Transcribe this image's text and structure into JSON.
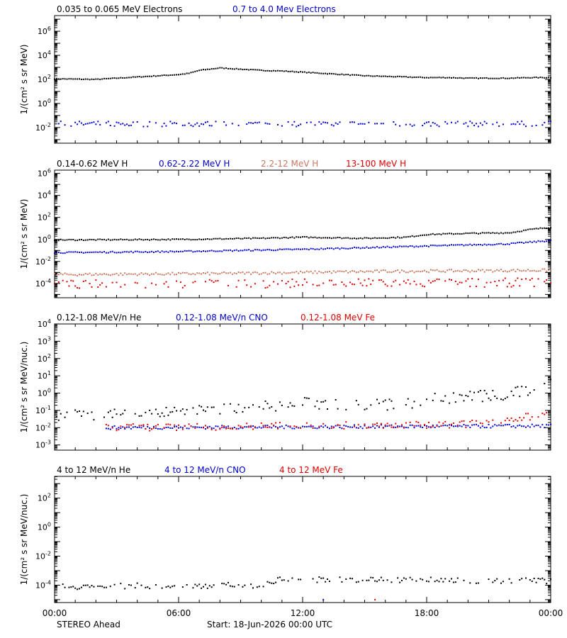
{
  "footer": {
    "spacecraft": "STEREO Ahead",
    "start": "Start: 18-Jun-2026 00:00 UTC"
  },
  "x_ticks": [
    "00:00",
    "06:00",
    "12:00",
    "18:00",
    "00:00"
  ],
  "colors": {
    "black": "#000000",
    "blue": "#0000cc",
    "salmon": "#c87860",
    "red": "#dd0000"
  },
  "chart_data": [
    {
      "type": "scatter",
      "ylabel": "1/(cm² s sr MeV)",
      "yscale": "log",
      "ylim_exp": [
        -3.3,
        7.3
      ],
      "y_ticks": [
        {
          "base": "10",
          "exp": "6",
          "e": 6
        },
        {
          "base": "10",
          "exp": "4",
          "e": 4
        },
        {
          "base": "10",
          "exp": "2",
          "e": 2
        },
        {
          "base": "10",
          "exp": "0",
          "e": 0
        },
        {
          "base": "10",
          "exp": "-2",
          "e": -2
        }
      ],
      "x_hours": [
        0,
        24
      ],
      "series": [
        {
          "name": "0.035 to 0.065 MeV Electrons",
          "color": "#000000",
          "points": [
            [
              0,
              2.05
            ],
            [
              2,
              2.0
            ],
            [
              3,
              2.1
            ],
            [
              4,
              2.2
            ],
            [
              5,
              2.3
            ],
            [
              6,
              2.4
            ],
            [
              6.5,
              2.5
            ],
            [
              7,
              2.75
            ],
            [
              8,
              2.95
            ],
            [
              9,
              2.85
            ],
            [
              10,
              2.75
            ],
            [
              11,
              2.7
            ],
            [
              12,
              2.6
            ],
            [
              13,
              2.5
            ],
            [
              14,
              2.4
            ],
            [
              15,
              2.3
            ],
            [
              16,
              2.25
            ],
            [
              17,
              2.2
            ],
            [
              18,
              2.15
            ],
            [
              19,
              2.15
            ],
            [
              20,
              2.1
            ],
            [
              21,
              2.1
            ],
            [
              22,
              2.1
            ],
            [
              23,
              2.15
            ],
            [
              24,
              2.15
            ]
          ],
          "scatter": 0.03
        },
        {
          "name": "0.7 to 4.0 Mev Electrons",
          "color": "#0000cc",
          "points": [
            [
              0,
              -1.7
            ],
            [
              24,
              -1.7
            ]
          ],
          "scatter": 0.22
        }
      ]
    },
    {
      "type": "scatter",
      "ylabel": "1/(cm² s sr MeV)",
      "yscale": "log",
      "ylim_exp": [
        -5.3,
        6.3
      ],
      "y_ticks": [
        {
          "base": "10",
          "exp": "6",
          "e": 6
        },
        {
          "base": "10",
          "exp": "4",
          "e": 4
        },
        {
          "base": "10",
          "exp": "2",
          "e": 2
        },
        {
          "base": "10",
          "exp": "0",
          "e": 0
        },
        {
          "base": "10",
          "exp": "-2",
          "e": -2
        },
        {
          "base": "10",
          "exp": "-4",
          "e": -4
        }
      ],
      "x_hours": [
        0,
        24
      ],
      "series": [
        {
          "name": "0.14-0.62 MeV H",
          "color": "#000000",
          "points": [
            [
              0,
              -0.05
            ],
            [
              6,
              0.0
            ],
            [
              10,
              0.1
            ],
            [
              12,
              0.2
            ],
            [
              15,
              0.1
            ],
            [
              17,
              0.2
            ],
            [
              18,
              0.45
            ],
            [
              20,
              0.55
            ],
            [
              22,
              0.6
            ],
            [
              23,
              0.9
            ],
            [
              24,
              1.1
            ]
          ],
          "scatter": 0.05
        },
        {
          "name": "0.62-2.22 MeV H",
          "color": "#0000cc",
          "points": [
            [
              0,
              -1.2
            ],
            [
              6,
              -1.1
            ],
            [
              12,
              -0.9
            ],
            [
              18,
              -0.6
            ],
            [
              22,
              -0.4
            ],
            [
              24,
              -0.1
            ]
          ],
          "scatter": 0.06
        },
        {
          "name": "2.2-12 MeV H",
          "color": "#c87860",
          "points": [
            [
              0,
              -3.2
            ],
            [
              8,
              -3.1
            ],
            [
              16,
              -2.9
            ],
            [
              24,
              -2.8
            ]
          ],
          "scatter": 0.12
        },
        {
          "name": "13-100 MeV H",
          "color": "#dd0000",
          "points": [
            [
              0,
              -4.1
            ],
            [
              24,
              -3.9
            ]
          ],
          "scatter": 0.4
        }
      ]
    },
    {
      "type": "scatter",
      "ylabel": "1/(cm² s sr MeV/nuc.)",
      "yscale": "log",
      "ylim_exp": [
        -3.3,
        4.0
      ],
      "y_ticks": [
        {
          "base": "10",
          "exp": "4",
          "e": 4
        },
        {
          "base": "10",
          "exp": "3",
          "e": 3
        },
        {
          "base": "10",
          "exp": "2",
          "e": 2
        },
        {
          "base": "10",
          "exp": "1",
          "e": 1
        },
        {
          "base": "10",
          "exp": "0",
          "e": 0
        },
        {
          "base": "10",
          "exp": "-1",
          "e": -1
        },
        {
          "base": "10",
          "exp": "-2",
          "e": -2
        },
        {
          "base": "10",
          "exp": "-3",
          "e": -3
        }
      ],
      "x_hours": [
        0,
        24
      ],
      "series": [
        {
          "name": "0.12-1.08 MeV/n He",
          "color": "#000000",
          "points": [
            [
              0,
              -1.3
            ],
            [
              6,
              -1.1
            ],
            [
              10,
              -0.8
            ],
            [
              12,
              -0.6
            ],
            [
              17,
              -0.7
            ],
            [
              18,
              -0.3
            ],
            [
              22,
              -0.1
            ],
            [
              23,
              0.2
            ],
            [
              24,
              0.5
            ]
          ],
          "scatter": 0.35
        },
        {
          "name": "0.12-1.08 MeV/n CNO",
          "color": "#0000cc",
          "points": [
            [
              2.5,
              -2.0
            ],
            [
              24,
              -1.9
            ]
          ],
          "scatter": 0.1
        },
        {
          "name": "0.12-1.08 MeV Fe",
          "color": "#dd0000",
          "points": [
            [
              2.5,
              -2.0
            ],
            [
              20,
              -1.8
            ],
            [
              24,
              -1.2
            ]
          ],
          "scatter": 0.2
        }
      ]
    },
    {
      "type": "scatter",
      "ylabel": "1/(cm² s sr MeV/nuc.)",
      "yscale": "log",
      "ylim_exp": [
        -5.2,
        3.5
      ],
      "y_ticks": [
        {
          "base": "10",
          "exp": "2",
          "e": 2
        },
        {
          "base": "10",
          "exp": "0",
          "e": 0
        },
        {
          "base": "10",
          "exp": "-2",
          "e": -2
        },
        {
          "base": "10",
          "exp": "-4",
          "e": -4
        }
      ],
      "x_hours": [
        0,
        24
      ],
      "series": [
        {
          "name": "4 to 12 MeV/n He",
          "color": "#000000",
          "points": [
            [
              0,
              -4.1
            ],
            [
              10,
              -4.0
            ],
            [
              11,
              -3.6
            ],
            [
              24,
              -3.7
            ]
          ],
          "scatter": 0.2
        },
        {
          "name": "4 to 12 MeV/n CNO",
          "color": "#0000cc",
          "points": [
            [
              13,
              -5.0
            ]
          ],
          "scatter": 0
        },
        {
          "name": "4 to 12 MeV Fe",
          "color": "#dd0000",
          "points": [
            [
              15.5,
              -5.0
            ]
          ],
          "scatter": 0
        }
      ]
    }
  ]
}
